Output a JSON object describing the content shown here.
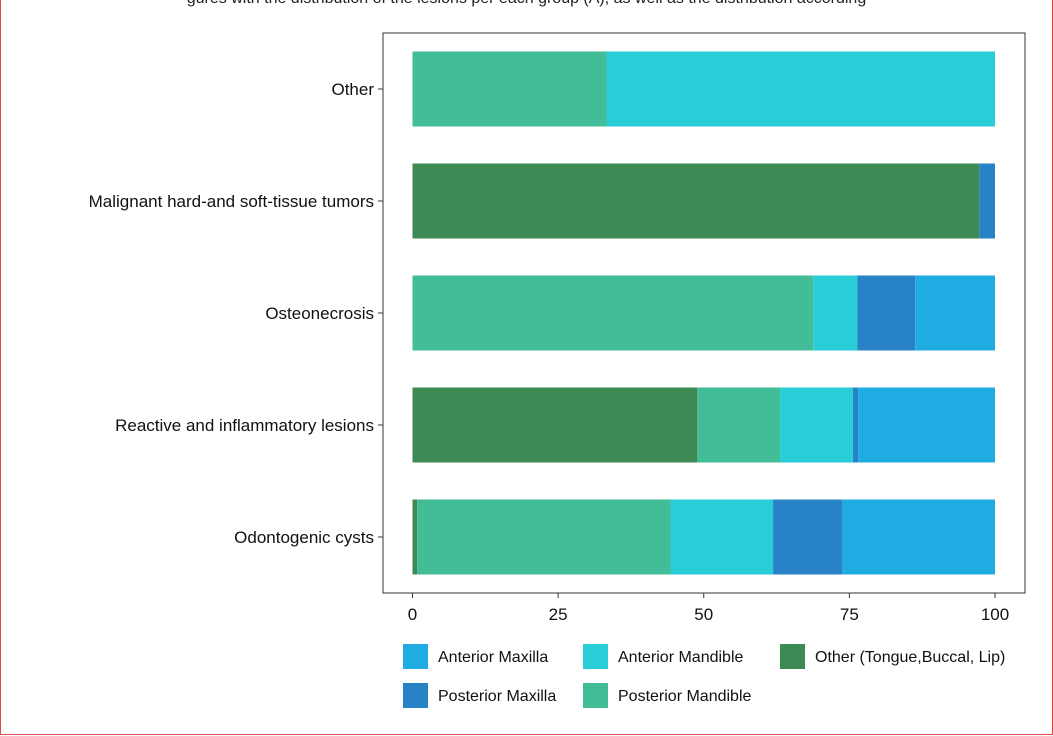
{
  "page": {
    "top_text": "gures with the distribution of the lesions per each group (A), as well as the distribution according"
  },
  "colors": {
    "Anterior Maxilla": "#20ace3",
    "Anterior Mandible": "#29cdd7",
    "Other (Tongue,Buccal, Lip)": "#3d8a55",
    "Posterior Maxilla": "#2882c6",
    "Posterior Mandible": "#43bc98"
  },
  "chart_data": {
    "type": "bar",
    "orientation": "horizontal",
    "stacked": true,
    "title": "",
    "xlabel": "",
    "ylabel": "",
    "xlim": [
      0,
      100
    ],
    "x_ticks": [
      "0",
      "25",
      "50",
      "75",
      "100"
    ],
    "grid": false,
    "legend_position": "bottom",
    "categories": [
      "Odontogenic cysts",
      "Reactive  and  inflammatory lesions",
      "Osteonecrosis",
      "Malignant hard-and  soft-tissue tumors",
      "Other"
    ],
    "stack_order": [
      "Other (Tongue,Buccal, Lip)",
      "Posterior Mandible",
      "Anterior Mandible",
      "Posterior Maxilla",
      "Anterior Maxilla"
    ],
    "legend_order": [
      "Anterior Maxilla",
      "Anterior Mandible",
      "Other (Tongue,Buccal, Lip)",
      "Posterior Maxilla",
      "Posterior Mandible"
    ],
    "series": [
      {
        "name": "Other (Tongue,Buccal, Lip)",
        "values": [
          0.8,
          48.9,
          0,
          97.3,
          0
        ]
      },
      {
        "name": "Posterior Mandible",
        "values": [
          43.5,
          14.2,
          68.8,
          0,
          33.3
        ]
      },
      {
        "name": "Anterior Mandible",
        "values": [
          17.6,
          12.5,
          7.6,
          0,
          66.7
        ]
      },
      {
        "name": "Posterior Maxilla",
        "values": [
          11.9,
          0.9,
          9.9,
          2.7,
          0
        ]
      },
      {
        "name": "Anterior Maxilla",
        "values": [
          26.2,
          23.5,
          13.7,
          0,
          0
        ]
      }
    ]
  }
}
